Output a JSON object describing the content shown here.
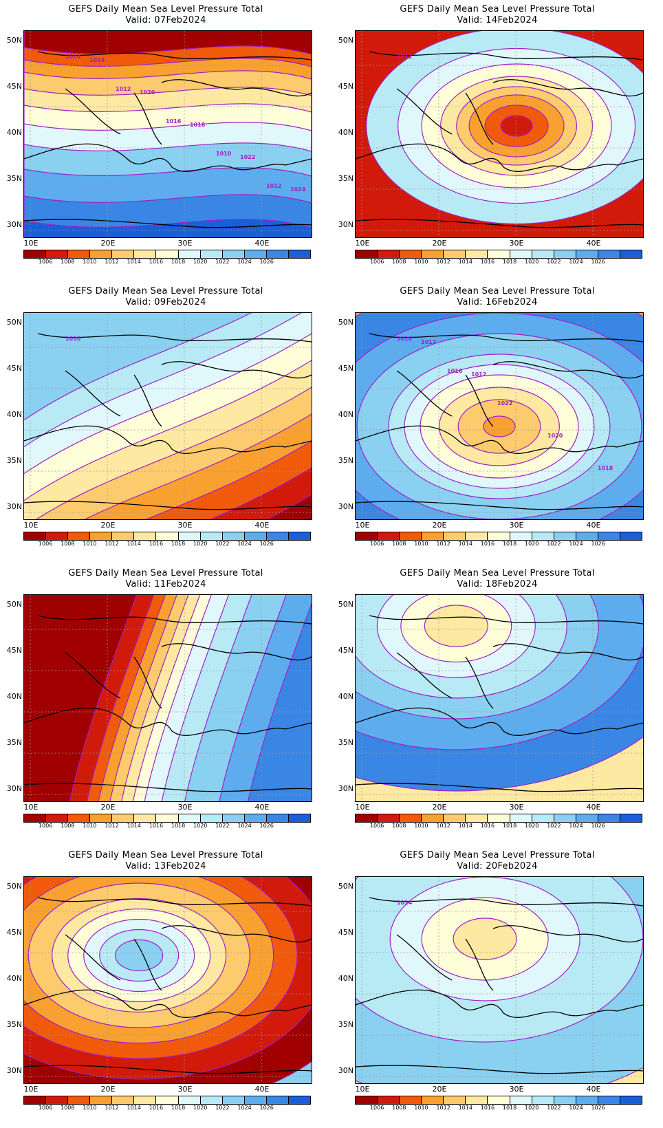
{
  "colorbar": {
    "colors": [
      "#a00000",
      "#d21a0a",
      "#f05a0a",
      "#f8a030",
      "#fccb6e",
      "#fde9a2",
      "#fefed8",
      "#e0f8fc",
      "#b8eaf6",
      "#8ad0f0",
      "#5cacee",
      "#3a86e4",
      "#1a5ed8"
    ],
    "labels": [
      "1006",
      "1008",
      "1010",
      "1012",
      "1014",
      "1016",
      "1018",
      "1020",
      "1022",
      "1024",
      "1026"
    ]
  },
  "axes": {
    "x_ticks": [
      "10E",
      "20E",
      "30E",
      "40E"
    ],
    "y_ticks": [
      "50N",
      "45N",
      "40N",
      "35N",
      "30N"
    ]
  },
  "panels": [
    {
      "title": "GEFS Daily Mean Sea Level Pressure Total",
      "valid": "Valid: 07Feb2024",
      "chart_data": {
        "type": "heatmap",
        "variable": "Mean Sea Level Pressure (hPa)",
        "contour_labels": [
          "1010",
          "1012",
          "1016",
          "1010",
          "1012",
          "1014",
          "1020",
          "1018",
          "1022",
          "1024"
        ],
        "bands": [
          0,
          2,
          3,
          4,
          5,
          6,
          7,
          9,
          10,
          11,
          12
        ]
      }
    },
    {
      "title": "GEFS Daily Mean Sea Level Pressure Total",
      "valid": "Valid: 14Feb2024",
      "chart_data": {
        "type": "heatmap",
        "variable": "Mean Sea Level Pressure (hPa)",
        "contour_labels": [
          "1012"
        ],
        "bands": [
          8,
          7,
          6,
          5,
          4,
          3,
          2,
          1
        ]
      }
    },
    {
      "title": "GEFS Daily Mean Sea Level Pressure Total",
      "valid": "Valid: 09Feb2024",
      "chart_data": {
        "type": "heatmap",
        "variable": "Mean Sea Level Pressure (hPa)",
        "contour_labels": [
          "1010"
        ],
        "bands": [
          0,
          1,
          2,
          3,
          4,
          5,
          6,
          7,
          8,
          9
        ]
      }
    },
    {
      "title": "GEFS Daily Mean Sea Level Pressure Total",
      "valid": "Valid: 16Feb2024",
      "chart_data": {
        "type": "heatmap",
        "variable": "Mean Sea Level Pressure (hPa)",
        "contour_labels": [
          "1018",
          "1016",
          "1022",
          "1020",
          "1018",
          "1012",
          "1012"
        ],
        "bands": [
          11,
          10,
          9,
          8,
          7,
          6,
          5,
          4,
          3
        ]
      }
    },
    {
      "title": "GEFS Daily Mean Sea Level Pressure Total",
      "valid": "Valid: 11Feb2024",
      "chart_data": {
        "type": "heatmap",
        "variable": "Mean Sea Level Pressure (hPa)",
        "contour_labels": [],
        "bands": [
          0,
          1,
          2,
          3,
          4,
          5,
          6,
          7,
          8,
          9,
          10,
          11
        ]
      }
    },
    {
      "title": "GEFS Daily Mean Sea Level Pressure Total",
      "valid": "Valid: 18Feb2024",
      "chart_data": {
        "type": "heatmap",
        "variable": "Mean Sea Level Pressure (hPa)",
        "contour_labels": [],
        "bands": [
          11,
          10,
          9,
          8,
          7,
          6,
          5
        ]
      }
    },
    {
      "title": "GEFS Daily Mean Sea Level Pressure Total",
      "valid": "Valid: 13Feb2024",
      "chart_data": {
        "type": "heatmap",
        "variable": "Mean Sea Level Pressure (hPa)",
        "contour_labels": [],
        "bands": [
          0,
          1,
          2,
          3,
          4,
          5,
          6,
          7,
          8,
          9
        ]
      }
    },
    {
      "title": "GEFS Daily Mean Sea Level Pressure Total",
      "valid": "Valid: 20Feb2024",
      "chart_data": {
        "type": "heatmap",
        "variable": "Mean Sea Level Pressure (hPa)",
        "contour_labels": [
          "1014"
        ],
        "bands": [
          9,
          8,
          7,
          6,
          5
        ]
      }
    }
  ]
}
